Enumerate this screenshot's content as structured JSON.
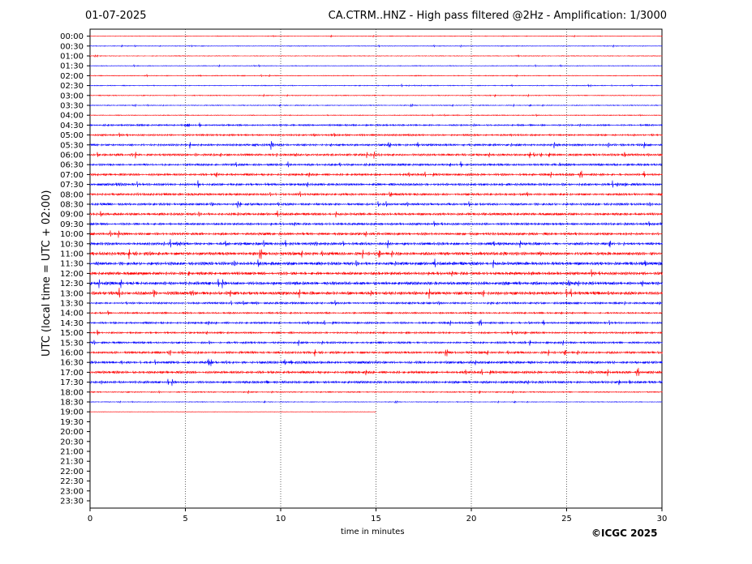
{
  "header": {
    "date": "01-07-2025",
    "title": "CA.CTRM..HNZ - High pass filtered @2Hz - Amplification: 1/3000"
  },
  "chart_data": {
    "type": "line",
    "title": "CA.CTRM..HNZ - High pass filtered @2Hz - Amplification: 1/3000",
    "date": "01-07-2025",
    "xlabel": "time in minutes",
    "ylabel": "UTC (local time = UTC + 02:00)",
    "xlim": [
      0,
      30
    ],
    "x_ticks": [
      0,
      5,
      10,
      15,
      20,
      25,
      30
    ],
    "y_ticks": [
      "00:00",
      "00:30",
      "01:00",
      "01:30",
      "02:00",
      "02:30",
      "03:00",
      "03:30",
      "04:00",
      "04:30",
      "05:00",
      "05:30",
      "06:00",
      "06:30",
      "07:00",
      "07:30",
      "08:00",
      "08:30",
      "09:00",
      "09:30",
      "10:00",
      "10:30",
      "11:00",
      "11:30",
      "12:00",
      "12:30",
      "13:00",
      "13:30",
      "14:00",
      "14:30",
      "15:00",
      "15:30",
      "16:00",
      "16:30",
      "17:00",
      "17:30",
      "18:00",
      "18:30",
      "19:00",
      "19:30",
      "20:00",
      "20:30",
      "21:00",
      "21:30",
      "22:00",
      "22:30",
      "23:00",
      "23:30"
    ],
    "grid": "vertical dotted at 5-minute ticks",
    "trace_colors": [
      "#ff0000",
      "#0000ff"
    ],
    "last_trace": {
      "label": "19:00",
      "end_minute": 15
    },
    "noise_level": [
      0.4,
      0.4,
      0.4,
      0.4,
      0.5,
      0.5,
      0.5,
      0.5,
      0.5,
      1.0,
      1.1,
      1.3,
      1.4,
      1.3,
      1.4,
      1.5,
      1.4,
      1.4,
      1.5,
      1.4,
      1.6,
      1.7,
      2.0,
      2.0,
      1.9,
      2.0,
      2.0,
      1.2,
      1.0,
      1.2,
      1.1,
      1.2,
      1.4,
      1.6,
      1.6,
      1.5,
      0.7,
      0.4,
      0.3
    ],
    "events": [
      {
        "row": "04:30",
        "minute": 5.0,
        "amp": 6
      },
      {
        "row": "04:30",
        "minute": 20.1,
        "amp": 4
      },
      {
        "row": "05:00",
        "minute": 11.7,
        "amp": 4
      },
      {
        "row": "05:30",
        "minute": 9.5,
        "amp": 8
      },
      {
        "row": "06:00",
        "minute": 5.4,
        "amp": 4
      },
      {
        "row": "06:30",
        "minute": 24.6,
        "amp": 3
      },
      {
        "row": "06:30",
        "minute": 27.5,
        "amp": 3
      },
      {
        "row": "07:00",
        "minute": 6.6,
        "amp": 4
      },
      {
        "row": "07:30",
        "minute": 1.4,
        "amp": 4
      },
      {
        "row": "08:00",
        "minute": 2.4,
        "amp": 3
      },
      {
        "row": "08:30",
        "minute": 6.4,
        "amp": 3
      },
      {
        "row": "09:00",
        "minute": 14.4,
        "amp": 4
      },
      {
        "row": "09:30",
        "minute": 28.0,
        "amp": 3
      },
      {
        "row": "10:30",
        "minute": 11.8,
        "amp": 6
      },
      {
        "row": "10:30",
        "minute": 21.2,
        "amp": 5
      },
      {
        "row": "11:30",
        "minute": 29.1,
        "amp": 5
      },
      {
        "row": "12:00",
        "minute": 5.1,
        "amp": 4
      },
      {
        "row": "12:30",
        "minute": 25.1,
        "amp": 7
      },
      {
        "row": "12:30",
        "minute": 28.9,
        "amp": 9
      },
      {
        "row": "13:00",
        "minute": 1.5,
        "amp": 8
      },
      {
        "row": "13:00",
        "minute": 3.3,
        "amp": 9
      },
      {
        "row": "13:00",
        "minute": 5.3,
        "amp": 6
      },
      {
        "row": "14:30",
        "minute": 23.0,
        "amp": 3
      },
      {
        "row": "15:00",
        "minute": 14.0,
        "amp": 3
      },
      {
        "row": "16:30",
        "minute": 6.2,
        "amp": 19
      },
      {
        "row": "16:30",
        "minute": 3.4,
        "amp": 5
      },
      {
        "row": "17:00",
        "minute": 26.2,
        "amp": 5
      },
      {
        "row": "17:30",
        "minute": 0.6,
        "amp": 3
      },
      {
        "row": "17:30",
        "minute": 9.3,
        "amp": 3
      }
    ]
  },
  "footer": {
    "xlabel": "time in minutes",
    "credit": "©ICGC 2025"
  }
}
